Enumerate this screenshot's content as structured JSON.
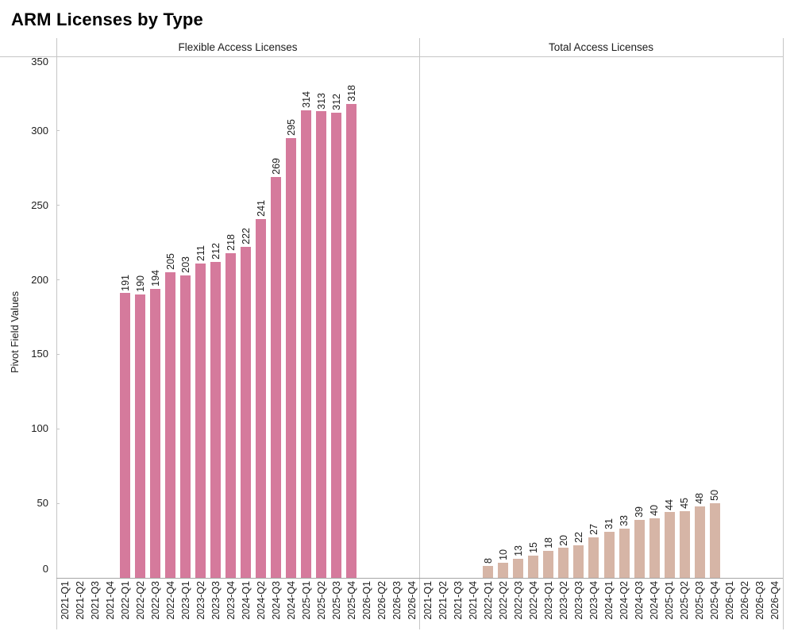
{
  "title": "ARM Licenses by Type",
  "chart_data": {
    "type": "bar",
    "title": "ARM Licenses by Type",
    "xlabel": "",
    "ylabel": "Pivot Field Values",
    "ylim": [
      0,
      350
    ],
    "yticks": [
      0,
      50,
      100,
      150,
      200,
      250,
      300,
      350
    ],
    "grid": false,
    "legend_position": "none",
    "bar_labels": true,
    "categories": [
      "2021-Q1",
      "2021-Q2",
      "2021-Q3",
      "2021-Q4",
      "2022-Q1",
      "2022-Q2",
      "2022-Q3",
      "2022-Q4",
      "2023-Q1",
      "2023-Q2",
      "2023-Q3",
      "2023-Q4",
      "2024-Q1",
      "2024-Q2",
      "2024-Q3",
      "2024-Q4",
      "2025-Q1",
      "2025-Q2",
      "2025-Q3",
      "2025-Q4",
      "2026-Q1",
      "2026-Q2",
      "2026-Q3",
      "2026-Q4"
    ],
    "series": [
      {
        "name": "Flexible Access Licenses",
        "color": "#d57a9c",
        "values": [
          null,
          null,
          null,
          null,
          191,
          190,
          194,
          205,
          203,
          211,
          212,
          218,
          222,
          241,
          269,
          295,
          314,
          313,
          312,
          318,
          null,
          null,
          null,
          null
        ]
      },
      {
        "name": "Total Access Licenses",
        "color": "#d6b5a6",
        "values": [
          null,
          null,
          null,
          null,
          8,
          10,
          13,
          15,
          18,
          20,
          22,
          27,
          31,
          33,
          39,
          40,
          44,
          45,
          48,
          50,
          null,
          null,
          null,
          null
        ]
      }
    ]
  }
}
